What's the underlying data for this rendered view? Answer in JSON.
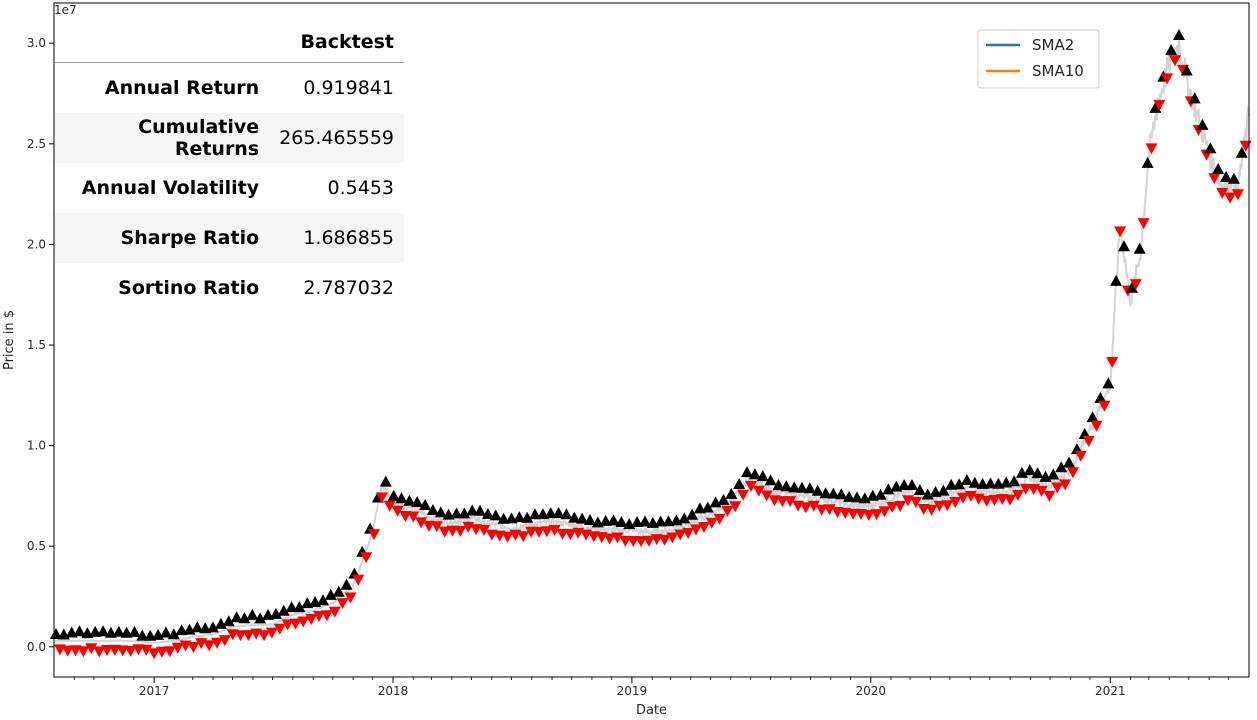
{
  "chart_data": {
    "type": "line",
    "title": "",
    "xlabel": "Date",
    "ylabel": "Price in $",
    "y_offset_text": "1e7",
    "x_range": [
      "2016-08-01",
      "2021-08-01"
    ],
    "ylim": [
      -0.15,
      3.2
    ],
    "y_ticks": [
      0.0,
      0.5,
      1.0,
      1.5,
      2.0,
      2.5,
      3.0
    ],
    "y_tick_labels": [
      "0.0",
      "0.5",
      "1.0",
      "1.5",
      "2.0",
      "2.5",
      "3.0"
    ],
    "x_ticks": [
      "2017-01-01",
      "2018-01-01",
      "2019-01-01",
      "2020-01-01",
      "2021-01-01"
    ],
    "x_tick_labels": [
      "2017",
      "2018",
      "2019",
      "2020",
      "2021"
    ],
    "legend": {
      "placement": "upper-right",
      "entries": [
        {
          "name": "SMA2",
          "color": "#1f77b4"
        },
        {
          "name": "SMA10",
          "color": "#ff7f0e"
        }
      ]
    },
    "price_series": {
      "color": "#d3d3d3",
      "points": [
        [
          "2016-08-01",
          0.03
        ],
        [
          "2016-09-01",
          0.03
        ],
        [
          "2016-10-01",
          0.03
        ],
        [
          "2016-11-01",
          0.03
        ],
        [
          "2016-12-01",
          0.03
        ],
        [
          "2017-01-01",
          0.02
        ],
        [
          "2017-02-01",
          0.03
        ],
        [
          "2017-03-01",
          0.05
        ],
        [
          "2017-04-01",
          0.06
        ],
        [
          "2017-05-01",
          0.1
        ],
        [
          "2017-06-01",
          0.11
        ],
        [
          "2017-07-01",
          0.11
        ],
        [
          "2017-08-01",
          0.16
        ],
        [
          "2017-09-01",
          0.18
        ],
        [
          "2017-10-01",
          0.22
        ],
        [
          "2017-11-01",
          0.3
        ],
        [
          "2017-12-01",
          0.58
        ],
        [
          "2017-12-16",
          0.81
        ],
        [
          "2018-01-01",
          0.72
        ],
        [
          "2018-02-01",
          0.69
        ],
        [
          "2018-03-01",
          0.64
        ],
        [
          "2018-04-01",
          0.62
        ],
        [
          "2018-05-01",
          0.64
        ],
        [
          "2018-06-01",
          0.61
        ],
        [
          "2018-07-01",
          0.59
        ],
        [
          "2018-08-01",
          0.61
        ],
        [
          "2018-09-01",
          0.62
        ],
        [
          "2018-10-01",
          0.61
        ],
        [
          "2018-11-01",
          0.59
        ],
        [
          "2018-12-01",
          0.58
        ],
        [
          "2019-01-01",
          0.58
        ],
        [
          "2019-02-01",
          0.57
        ],
        [
          "2019-03-01",
          0.58
        ],
        [
          "2019-04-01",
          0.62
        ],
        [
          "2019-05-01",
          0.66
        ],
        [
          "2019-06-01",
          0.72
        ],
        [
          "2019-07-01",
          0.84
        ],
        [
          "2019-08-01",
          0.78
        ],
        [
          "2019-09-01",
          0.76
        ],
        [
          "2019-10-01",
          0.74
        ],
        [
          "2019-11-01",
          0.73
        ],
        [
          "2019-12-01",
          0.7
        ],
        [
          "2020-01-01",
          0.7
        ],
        [
          "2020-02-01",
          0.74
        ],
        [
          "2020-03-01",
          0.77
        ],
        [
          "2020-04-01",
          0.72
        ],
        [
          "2020-05-01",
          0.76
        ],
        [
          "2020-06-01",
          0.79
        ],
        [
          "2020-07-01",
          0.77
        ],
        [
          "2020-08-01",
          0.78
        ],
        [
          "2020-09-01",
          0.84
        ],
        [
          "2020-10-01",
          0.8
        ],
        [
          "2020-11-01",
          0.88
        ],
        [
          "2020-12-01",
          1.08
        ],
        [
          "2021-01-01",
          1.3
        ],
        [
          "2021-01-16",
          2.1
        ],
        [
          "2021-02-01",
          1.72
        ],
        [
          "2021-02-16",
          1.95
        ],
        [
          "2021-03-01",
          2.45
        ],
        [
          "2021-03-16",
          2.72
        ],
        [
          "2021-04-01",
          2.9
        ],
        [
          "2021-04-16",
          3.0
        ],
        [
          "2021-05-01",
          2.78
        ],
        [
          "2021-05-16",
          2.62
        ],
        [
          "2021-06-01",
          2.45
        ],
        [
          "2021-06-16",
          2.32
        ],
        [
          "2021-07-01",
          2.28
        ],
        [
          "2021-07-16",
          2.3
        ],
        [
          "2021-08-01",
          2.65
        ]
      ]
    },
    "signals": {
      "buy_color": "#000000",
      "sell_color": "#ff0000"
    }
  },
  "stats_table": {
    "header": "Backtest",
    "rows": [
      {
        "name": "Annual Return",
        "value": "0.919841"
      },
      {
        "name": "Cumulative Returns",
        "value": "265.465559"
      },
      {
        "name": "Annual Volatility",
        "value": "0.5453"
      },
      {
        "name": "Sharpe Ratio",
        "value": "1.686855"
      },
      {
        "name": "Sortino Ratio",
        "value": "2.787032"
      }
    ]
  }
}
